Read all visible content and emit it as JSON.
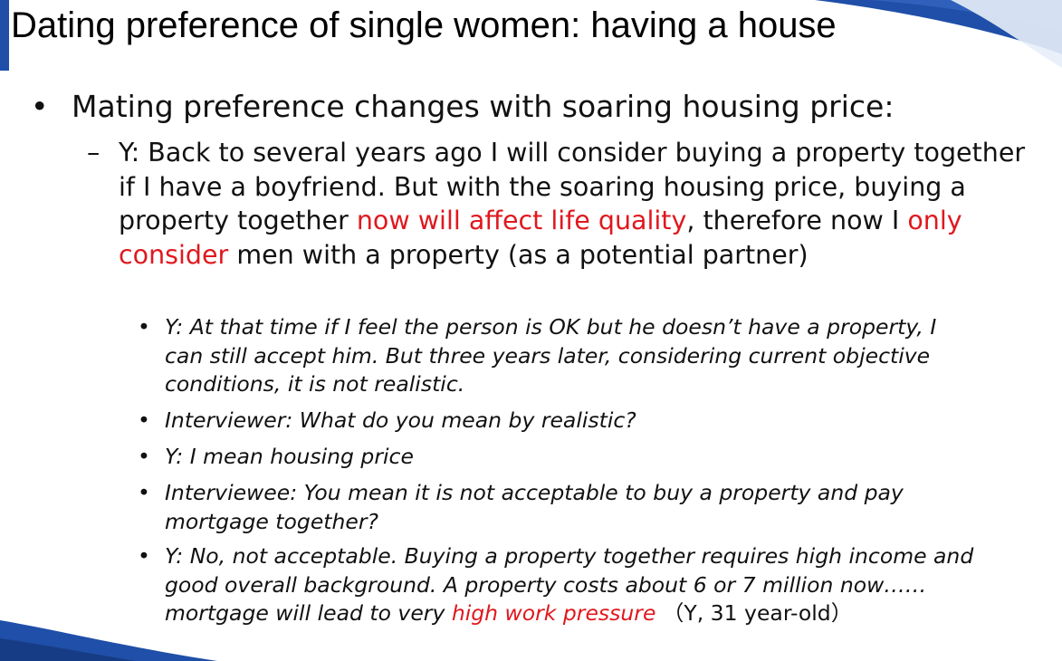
{
  "slide": {
    "title": "Dating preference of single women: having a house",
    "accent_color": "#1f4fa8",
    "highlight_color": "#e0181e"
  },
  "content": {
    "bullet_main": "Mating preference changes with soaring housing price:",
    "dash_item": {
      "marker": "–",
      "part1": "Y: Back to several years ago I will consider buying a property together if I have a boyfriend. But with the soaring housing price, buying a property together ",
      "highlight1": "now will affect life quality",
      "part2": ", therefore now I ",
      "highlight2": "only consider",
      "part3": " men with a property (as a potential partner)"
    },
    "sub_bullets": [
      {
        "text": "Y: At that time if I feel the person is OK but he doesn’t have a property, I can still accept him.  But three years later, considering current objective conditions, it is not realistic."
      },
      {
        "text": "Interviewer: What do you mean by realistic?"
      },
      {
        "text": "Y: I mean housing price"
      },
      {
        "text": "Interviewee: You mean it is not acceptable to buy a property and pay mortgage together?"
      },
      {
        "text": "Y: No, not acceptable. Buying a property together requires high income and good overall background. A property costs about 6 or 7 million now……mortgage will lead to very ",
        "highlight": "high work pressure",
        "tail": " （Y, 31 year-old）"
      }
    ]
  }
}
